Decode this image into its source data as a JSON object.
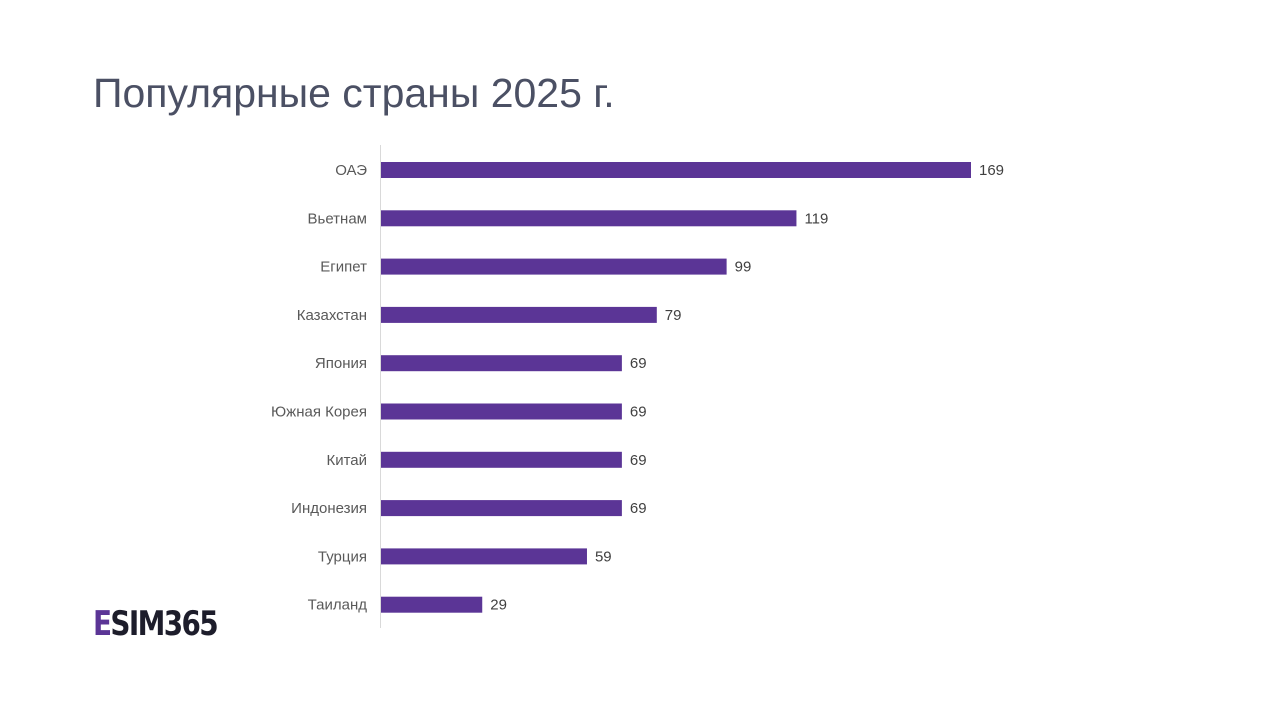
{
  "chart_data": {
    "type": "barh",
    "title": "Популярные страны 2025 г.",
    "categories": [
      "ОАЭ",
      "Вьетнам",
      "Египет",
      "Казахстан",
      "Япония",
      "Южная Корея",
      "Китай",
      "Индонезия",
      "Турция",
      "Таиланд"
    ],
    "values": [
      169,
      119,
      99,
      79,
      69,
      69,
      69,
      69,
      59,
      29
    ],
    "color": "#5b3596"
  },
  "logo": "ESIM365"
}
